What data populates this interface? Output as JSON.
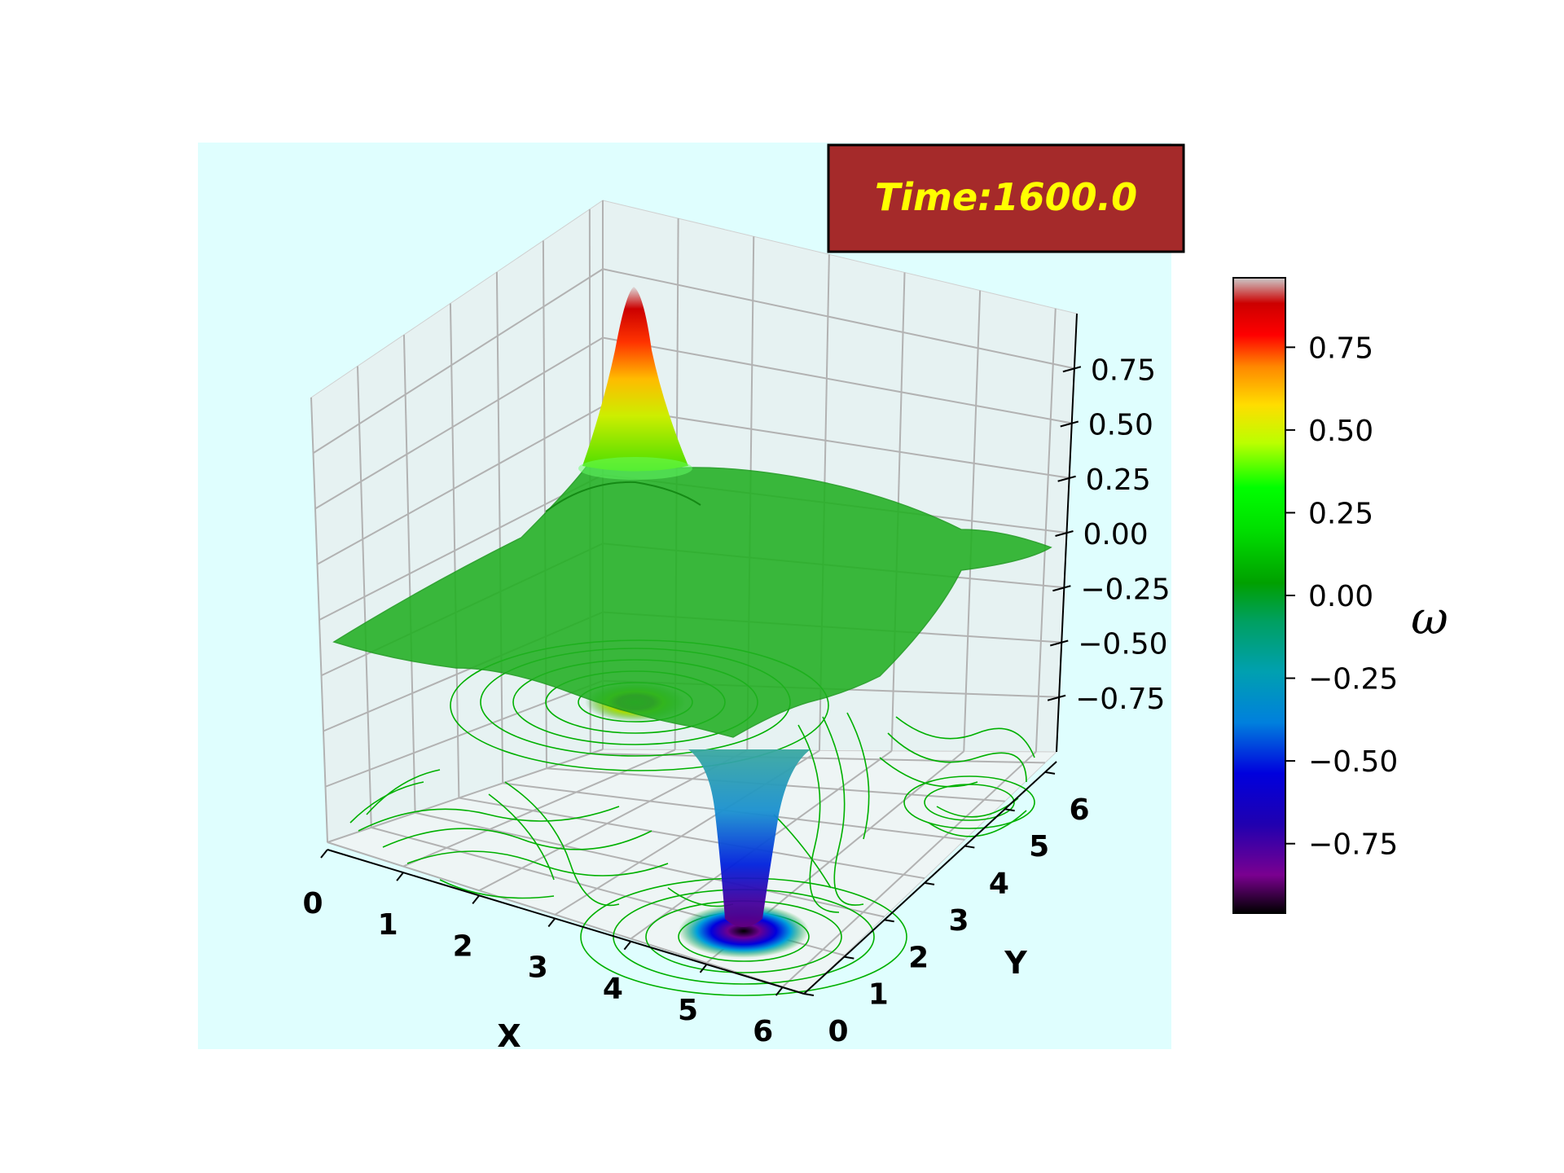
{
  "chart_data": {
    "type": "surface",
    "title": "Time:1600.0",
    "xlabel": "X",
    "ylabel": "Y",
    "xlim": [
      0,
      6.2832
    ],
    "ylim": [
      0,
      6.2832
    ],
    "zlim": [
      -1,
      1
    ],
    "x_ticks": [
      "0",
      "1",
      "2",
      "3",
      "4",
      "5",
      "6"
    ],
    "y_ticks": [
      "0",
      "1",
      "2",
      "3",
      "4",
      "5",
      "6"
    ],
    "z_ticks": [
      "0.75",
      "0.50",
      "0.25",
      "0.00",
      "−0.25",
      "−0.50",
      "−0.75"
    ],
    "z_tick_values": [
      0.75,
      0.5,
      0.25,
      0.0,
      -0.25,
      -0.5,
      -0.75
    ],
    "colorbar": {
      "label": "ω",
      "ticks": [
        "0.75",
        "0.50",
        "0.25",
        "0.00",
        "−0.25",
        "−0.50",
        "−0.75"
      ],
      "tick_values": [
        0.75,
        0.5,
        0.25,
        0.0,
        -0.25,
        -0.5,
        -0.75
      ],
      "range": [
        -0.96,
        0.96
      ],
      "colormap": "nipy_spectral"
    },
    "vortices": [
      {
        "sign": "positive",
        "center": [
          1.6,
          4.7
        ],
        "peak": 0.96
      },
      {
        "sign": "negative",
        "center": [
          4.7,
          1.6
        ],
        "peak": -0.96
      }
    ],
    "grid": true,
    "pane_color": "#dffefe",
    "surface_color": "#22b022",
    "streamline_color": "#00b000"
  },
  "colors": {
    "time_box_bg": "#a52a2a",
    "time_text": "#ffff00"
  }
}
